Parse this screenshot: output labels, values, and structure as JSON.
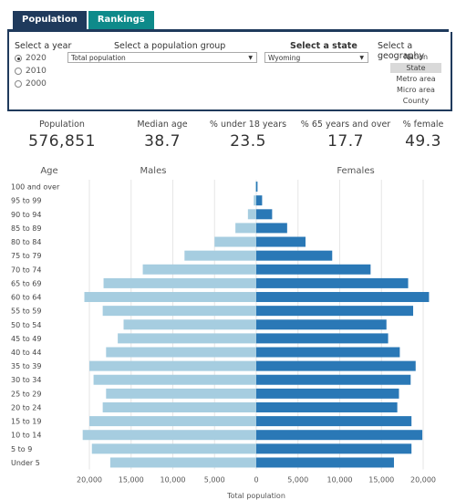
{
  "tabs": [
    {
      "label": "Population",
      "active": true
    },
    {
      "label": "Rankings",
      "active": false
    }
  ],
  "filters": {
    "year": {
      "label": "Select a year",
      "options": [
        "2020",
        "2010",
        "2000"
      ],
      "selected": "2020"
    },
    "group": {
      "label": "Select a population group",
      "value": "Total population"
    },
    "state": {
      "label": "Select a state",
      "value": "Wyoming"
    },
    "geography": {
      "label": "Select a geography",
      "options": [
        "Nation",
        "State",
        "Metro area",
        "Micro area",
        "County"
      ],
      "selected": "State"
    }
  },
  "stats": [
    {
      "label": "Population",
      "value": "576,851"
    },
    {
      "label": "Median age",
      "value": "38.7"
    },
    {
      "label": "% under 18 years",
      "value": "23.5"
    },
    {
      "label": "% 65 years and over",
      "value": "17.7"
    },
    {
      "label": "% female",
      "value": "49.3"
    }
  ],
  "colors": {
    "males": "#a6cde0",
    "females": "#2a78b6",
    "tab_active": "#1f3a5c",
    "tab_inactive": "#0e8a8a"
  },
  "chart_data": {
    "type": "bar",
    "orientation": "horizontal-pyramid",
    "age_header": "Age",
    "xlabel": "Total population",
    "xlim": [
      -20000,
      20000
    ],
    "xticks": [
      "20,000",
      "15,000",
      "10,000",
      "5,000",
      "0",
      "5,000",
      "10,000",
      "15,000",
      "20,000"
    ],
    "categories": [
      "100 and over",
      "95 to 99",
      "90 to 94",
      "85 to 89",
      "80 to 84",
      "75 to 79",
      "70 to 74",
      "65 to 69",
      "60 to 64",
      "55 to 59",
      "50 to 54",
      "45 to 49",
      "40 to 44",
      "35 to 39",
      "30 to 34",
      "25 to 29",
      "20 to 24",
      "15 to 19",
      "10 to 14",
      "5 to 9",
      "Under 5"
    ],
    "series": [
      {
        "name": "Males",
        "values": [
          50,
          300,
          1000,
          2500,
          5000,
          8600,
          13600,
          18300,
          20600,
          18400,
          15900,
          16600,
          18000,
          20000,
          19500,
          18000,
          18400,
          20000,
          20800,
          19700,
          17500
        ]
      },
      {
        "name": "Females",
        "values": [
          150,
          700,
          1900,
          3700,
          5900,
          9100,
          13700,
          18200,
          20700,
          18800,
          15600,
          15800,
          17200,
          19100,
          18500,
          17100,
          16900,
          18600,
          19900,
          18600,
          16500
        ]
      }
    ]
  }
}
